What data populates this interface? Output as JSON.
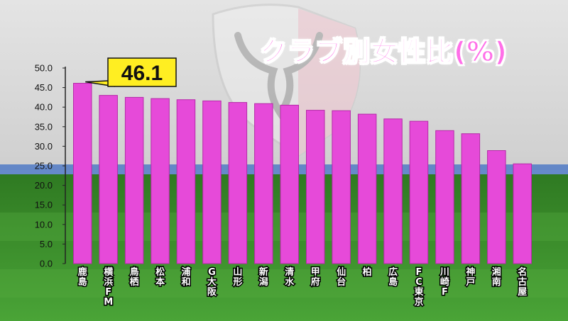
{
  "title": "クラブ別女性比(%)",
  "colors": {
    "bar": "#e64ad9",
    "bar_edge": "#b62aa8",
    "callout": "#ffee22",
    "pitch": "#3a8f2c",
    "wall": "#dcdcdc",
    "stripe": "#3f6fc4"
  },
  "chart_data": {
    "type": "bar",
    "title": "クラブ別女性比(%)",
    "categories": [
      "鹿島",
      "横浜FM",
      "鳥栖",
      "松本",
      "浦和",
      "G大阪",
      "山形",
      "新潟",
      "清水",
      "甲府",
      "仙台",
      "柏",
      "広島",
      "FC東京",
      "川崎F",
      "神戸",
      "湘南",
      "名古屋"
    ],
    "values": [
      46.1,
      43.0,
      42.5,
      42.2,
      41.9,
      41.6,
      41.2,
      40.9,
      40.5,
      39.2,
      39.1,
      38.2,
      37.0,
      36.4,
      34.0,
      33.2,
      28.9,
      25.5
    ],
    "ylim": [
      0,
      50
    ],
    "yticks": [
      "0.0",
      "5.0",
      "10.0",
      "15.0",
      "20.0",
      "25.0",
      "30.0",
      "35.0",
      "40.0",
      "45.0",
      "50.0"
    ],
    "ytick_values": [
      0,
      5,
      10,
      15,
      20,
      25,
      30,
      35,
      40,
      45,
      50
    ],
    "xlabel": "",
    "ylabel": "",
    "grid": false,
    "annotation": {
      "label": "46.1",
      "category": "鹿島"
    }
  }
}
